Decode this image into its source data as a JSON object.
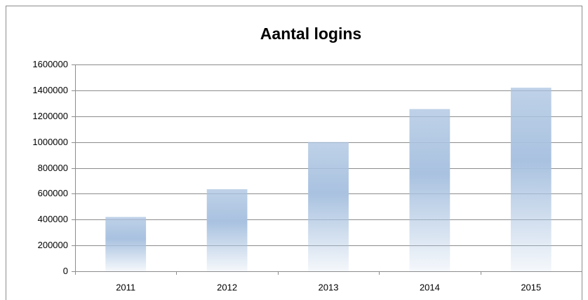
{
  "chart_data": {
    "type": "bar",
    "title": "Aantal logins",
    "categories": [
      "2011",
      "2012",
      "2013",
      "2014",
      "2015"
    ],
    "values": [
      420000,
      635000,
      1000000,
      1255000,
      1420000
    ],
    "color": "#a9c2e0",
    "ylim": [
      0,
      1600000
    ],
    "yticks": [
      0,
      200000,
      400000,
      600000,
      800000,
      1000000,
      1200000,
      1400000,
      1600000
    ],
    "grid": true
  }
}
